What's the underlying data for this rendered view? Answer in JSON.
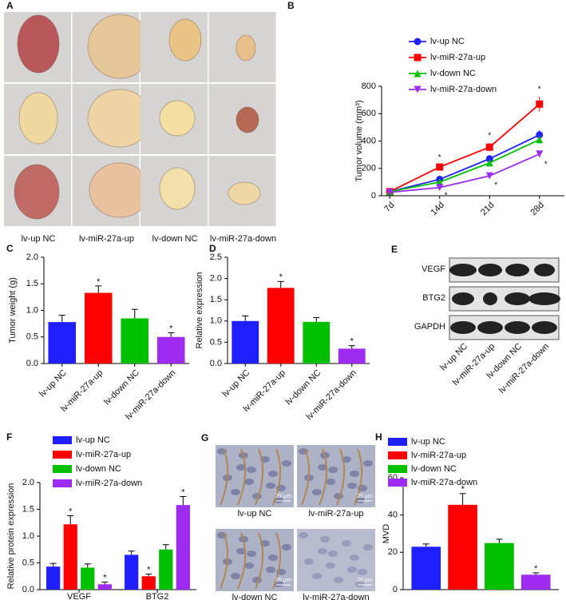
{
  "photos": {
    "panel": "A",
    "labels": [
      "lv-up NC",
      "lv-miR-27a-up",
      "lv-down NC",
      "lv-miR-27a-down"
    ]
  },
  "blot": {
    "panel": "E",
    "rows": [
      "VEGF",
      "BTG2",
      "GAPDH"
    ],
    "lanes": [
      "lv-up NC",
      "lv-miR-27a-up",
      "lv-down NC",
      "lv-miR-27a-down"
    ]
  },
  "ihc": {
    "panel": "G",
    "labels": [
      "lv-up NC",
      "lv-miR-27a-up",
      "lv-down NC",
      "lv-miR-27a-down"
    ],
    "scale_bar": "25 μm"
  },
  "chart_data": [
    {
      "type": "line",
      "panel": "B",
      "ylabel": "Tumor volume (mm³)",
      "categories": [
        "7d",
        "14d",
        "21d",
        "28d"
      ],
      "ylim": [
        0,
        800
      ],
      "yticks": [
        0,
        200,
        400,
        600,
        800
      ],
      "series": [
        {
          "name": "lv-up NC",
          "color": "#1f1fff",
          "marker": "circle",
          "values": [
            30,
            120,
            270,
            445
          ],
          "errors": [
            8,
            15,
            25,
            35
          ]
        },
        {
          "name": "lv-miR-27a-up",
          "color": "#ff0000",
          "marker": "square",
          "values": [
            30,
            210,
            355,
            670
          ],
          "errors": [
            6,
            15,
            30,
            55
          ],
          "sig": [
            null,
            "*",
            "*",
            "*"
          ]
        },
        {
          "name": "lv-down NC",
          "color": "#00c000",
          "marker": "triangle-up",
          "values": [
            30,
            100,
            240,
            410
          ],
          "errors": [
            6,
            12,
            22,
            30
          ]
        },
        {
          "name": "lv-miR-27a-down",
          "color": "#9d2bf0",
          "marker": "triangle-down",
          "values": [
            25,
            60,
            145,
            305
          ],
          "errors": [
            5,
            8,
            15,
            25
          ],
          "sig": [
            null,
            "*",
            "*",
            "*"
          ]
        }
      ]
    },
    {
      "type": "bar",
      "panel": "C",
      "ylabel": "Tumor weight (g)",
      "categories": [
        "lv-up NC",
        "lv-miR-27a-up",
        "lv-down NC",
        "lv-miR-27a-down"
      ],
      "values": [
        0.78,
        1.33,
        0.85,
        0.5
      ],
      "errors": [
        0.13,
        0.13,
        0.17,
        0.08
      ],
      "sig": [
        null,
        "*",
        null,
        "*"
      ],
      "colors": [
        "#1f1fff",
        "#ff0000",
        "#00c000",
        "#9d2bf0"
      ],
      "ylim": [
        0,
        2
      ],
      "yticks": [
        {
          "value": 0,
          "label": "0.0"
        },
        0.5,
        {
          "value": 1,
          "label": "1.0"
        },
        1.5,
        {
          "value": 2,
          "label": "2.0"
        }
      ]
    },
    {
      "type": "bar",
      "panel": "D",
      "ylabel": "Relative expression",
      "categories": [
        "lv-up NC",
        "lv-miR-27a-up",
        "lv-down NC",
        "lv-miR-27a-down"
      ],
      "values": [
        1.0,
        1.78,
        0.98,
        0.35
      ],
      "errors": [
        0.12,
        0.15,
        0.1,
        0.07
      ],
      "sig": [
        null,
        "*",
        null,
        "*"
      ],
      "colors": [
        "#1f1fff",
        "#ff0000",
        "#00c000",
        "#9d2bf0"
      ],
      "ylim": [
        0,
        2.5
      ],
      "yticks": [
        {
          "value": 0,
          "label": "0.0"
        },
        0.5,
        {
          "value": 1,
          "label": "1.0"
        },
        1.5,
        {
          "value": 2,
          "label": "2.0"
        },
        2.5
      ]
    },
    {
      "type": "grouped",
      "panel": "F",
      "ylabel": "Relative  protein expression",
      "categories": [
        "VEGF",
        "BTG2"
      ],
      "ylim": [
        0,
        2
      ],
      "yticks": [
        {
          "value": 0,
          "label": "0.0"
        },
        0.5,
        {
          "value": 1,
          "label": "1.0"
        },
        1.5,
        {
          "value": 2,
          "label": "2.0"
        }
      ],
      "series": [
        {
          "name": "lv-up NC",
          "color": "#1f1fff",
          "values": [
            0.43,
            0.65
          ],
          "errors": [
            0.06,
            0.07
          ]
        },
        {
          "name": "lv-miR-27a-up",
          "color": "#ff0000",
          "values": [
            1.22,
            0.25
          ],
          "errors": [
            0.16,
            0.04
          ],
          "sig": [
            "*",
            "*"
          ]
        },
        {
          "name": "lv-down NC",
          "color": "#00c000",
          "values": [
            0.41,
            0.75
          ],
          "errors": [
            0.07,
            0.09
          ]
        },
        {
          "name": "lv-miR-27a-down",
          "color": "#9d2bf0",
          "values": [
            0.1,
            1.58
          ],
          "errors": [
            0.04,
            0.16
          ],
          "sig": [
            "*",
            "*"
          ]
        }
      ]
    },
    {
      "type": "grouped",
      "panel": "H",
      "ylabel": "MVD",
      "categories": [
        null
      ],
      "ylim": [
        0,
        60
      ],
      "yticks": [
        0,
        20,
        40,
        60
      ],
      "series": [
        {
          "name": "lv-up NC",
          "color": "#1f1fff",
          "values": [
            23
          ],
          "errors": [
            1.5
          ]
        },
        {
          "name": "lv-miR-27a-up",
          "color": "#ff0000",
          "values": [
            45.5
          ],
          "errors": [
            6
          ],
          "sig": [
            "*"
          ]
        },
        {
          "name": "lv-down NC",
          "color": "#00c000",
          "values": [
            25
          ],
          "errors": [
            2
          ]
        },
        {
          "name": "lv-miR-27a-down",
          "color": "#9d2bf0",
          "values": [
            8
          ],
          "errors": [
            1
          ],
          "sig": [
            "*"
          ]
        }
      ]
    }
  ]
}
